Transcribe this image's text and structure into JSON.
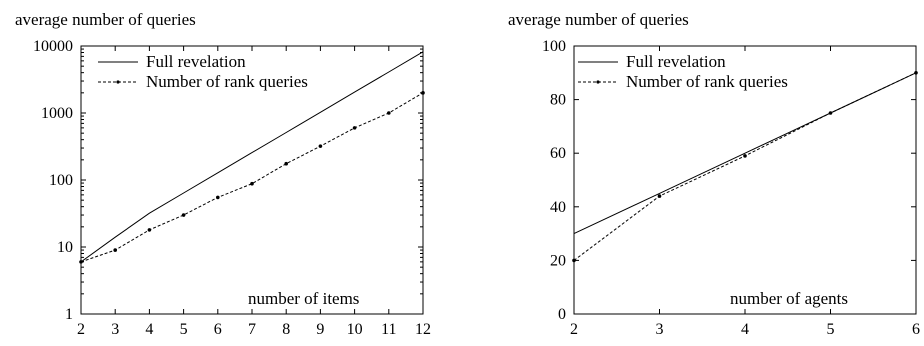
{
  "chart_data": [
    {
      "type": "line",
      "title": "",
      "ylabel": "average number of queries",
      "xlabel": "number of items",
      "yscale": "log",
      "xlim": [
        2,
        12
      ],
      "ylim": [
        1,
        10000
      ],
      "xticks": [
        "2",
        "3",
        "4",
        "5",
        "6",
        "7",
        "8",
        "9",
        "10",
        "11",
        "12"
      ],
      "yticks": [
        "1",
        "10",
        "100",
        "1000",
        "10000"
      ],
      "legend_position": "top-left",
      "grid": false,
      "series": [
        {
          "name": "Full revelation",
          "style": "solid",
          "x": [
            2,
            3,
            4,
            5,
            6,
            7,
            8,
            9,
            10,
            11,
            12
          ],
          "values": [
            6,
            14,
            32,
            64,
            128,
            256,
            512,
            1024,
            2048,
            4096,
            8192
          ]
        },
        {
          "name": "Number of rank queries",
          "style": "dashed-points",
          "x": [
            2,
            3,
            4,
            5,
            6,
            7,
            8,
            9,
            10,
            11,
            12
          ],
          "values": [
            6,
            9,
            18,
            30,
            55,
            88,
            175,
            320,
            600,
            1000,
            2000
          ]
        }
      ]
    },
    {
      "type": "line",
      "title": "",
      "ylabel": "average number of queries",
      "xlabel": "number of agents",
      "yscale": "linear",
      "xlim": [
        2,
        6
      ],
      "ylim": [
        0,
        100
      ],
      "xticks": [
        "2",
        "3",
        "4",
        "5",
        "6"
      ],
      "yticks": [
        "0",
        "20",
        "40",
        "60",
        "80",
        "100"
      ],
      "legend_position": "top-left",
      "grid": false,
      "series": [
        {
          "name": "Full revelation",
          "style": "solid",
          "x": [
            2,
            3,
            4,
            5,
            6
          ],
          "values": [
            30,
            45,
            60,
            75,
            90
          ]
        },
        {
          "name": "Number of rank queries",
          "style": "dashed-points",
          "x": [
            2,
            3,
            4,
            5,
            6
          ],
          "values": [
            20,
            44,
            59,
            75,
            90
          ]
        }
      ]
    }
  ]
}
